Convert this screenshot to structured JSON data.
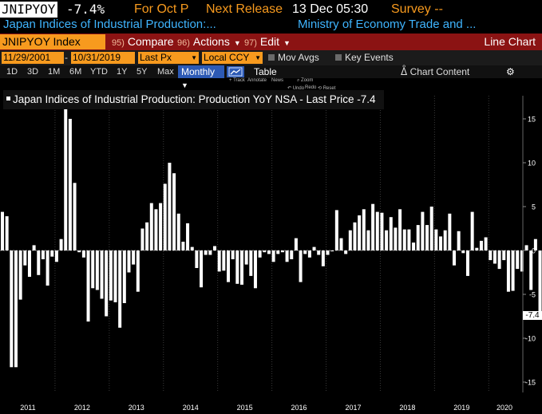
{
  "header": {
    "ticker": "JNIPYOY",
    "last_value": "-7.4%",
    "for_label": "For Oct P",
    "next_release_label": "Next Release",
    "next_release_value": "13 Dec 05:30",
    "survey_label": "Survey --",
    "description": "Japan Indices of Industrial Production:...",
    "source": "Ministry of Economy Trade and ..."
  },
  "toolbar": {
    "index_name": "JNIPYOY Index",
    "compare": {
      "num": "95)",
      "label": "Compare"
    },
    "actions": {
      "num": "96)",
      "label": "Actions"
    },
    "edit": {
      "num": "97)",
      "label": "Edit"
    },
    "chart_type": "Line Chart"
  },
  "controls": {
    "start_date": "11/29/2001",
    "end_date": "10/31/2019",
    "field": "Last Px",
    "currency": "Local CCY",
    "mov_avgs": "Mov Avgs",
    "key_events": "Key Events"
  },
  "periods": [
    "1D",
    "3D",
    "1M",
    "6M",
    "YTD",
    "1Y",
    "5Y",
    "Max"
  ],
  "frequency": "Monthly",
  "table_label": "Table",
  "chart_content_label": "Chart Content",
  "mini_tools": {
    "track": "Track",
    "annotate": "Annotate",
    "news": "News",
    "zoom": "Zoom",
    "undo": "Undo",
    "redo": "Redo",
    "reset": "Reset"
  },
  "icons": [
    "line-chart-icon",
    "chart-content-icon",
    "gear-icon",
    "track-icon",
    "zoom-icon",
    "undo-icon",
    "reset-icon"
  ],
  "colors": {
    "orange": "#f79a1e",
    "blue_text": "#3fb5ff",
    "menu_red": "#8b1313",
    "bar": "#ffffff",
    "background": "#000000"
  },
  "chart_data": {
    "type": "bar",
    "title": "Japan Indices of Industrial Production: Production YoY NSA - Last Price -7.4",
    "last_value_label": "-7.4",
    "x_start": "2011-01",
    "x_end": "2019-10",
    "x_tick_labels": [
      "2011",
      "2012",
      "2013",
      "2014",
      "2015",
      "2016",
      "2017",
      "2018",
      "2019",
      "2020"
    ],
    "y_ticks": [
      -15,
      -10,
      -5,
      0,
      5,
      10,
      15
    ],
    "ylim": [
      -15.5,
      16.5
    ],
    "y_axis_side": "right",
    "grid": "vertical dotted lines at years",
    "series": [
      {
        "values": [
          4.4,
          3.9,
          -13.3,
          -13.3,
          -5.6,
          -1.7,
          -3.0,
          0.6,
          -2.8,
          -1.0,
          -4.0,
          -0.7,
          -1.3,
          1.3,
          16.4,
          15.0,
          7.7,
          -0.2,
          -0.8,
          -8.1,
          -4.3,
          -4.5,
          -5.5,
          -7.5,
          -5.7,
          -5.9,
          -8.8,
          -6.0,
          -2.5,
          -1.6,
          -4.7,
          2.5,
          3.2,
          5.4,
          4.7,
          5.4,
          7.6,
          10.0,
          8.8,
          4.2,
          1.0,
          3.1,
          0.4,
          -2.0,
          -4.2,
          -0.5,
          -0.5,
          0.5,
          -2.4,
          -2.3,
          -3.6,
          -1.0,
          -3.8,
          -3.9,
          -1.6,
          -2.9,
          -4.3,
          -0.8,
          -0.2,
          -0.4,
          -1.3,
          -0.4,
          -0.2,
          -1.3,
          -1.0,
          1.4,
          -3.6,
          -0.4,
          -0.8,
          0.4,
          -0.5,
          -1.8,
          -0.5,
          -0.1,
          4.6,
          1.4,
          -0.4,
          2.3,
          3.2,
          4.0,
          4.7,
          2.3,
          5.3,
          4.4,
          4.3,
          2.3,
          3.8,
          2.6,
          4.7,
          2.4,
          2.4,
          0.9,
          2.9,
          4.4,
          2.9,
          5.0,
          2.4,
          1.6,
          2.3,
          4.2,
          -1.7,
          2.2,
          -0.3,
          -2.9,
          4.4,
          0.3,
          1.1,
          1.5,
          -1.1,
          -1.5,
          -2.1,
          -1.1,
          -4.7,
          -4.6,
          -2.1,
          -2.4,
          0.6,
          -4.5,
          1.3,
          -7.4
        ]
      }
    ]
  }
}
